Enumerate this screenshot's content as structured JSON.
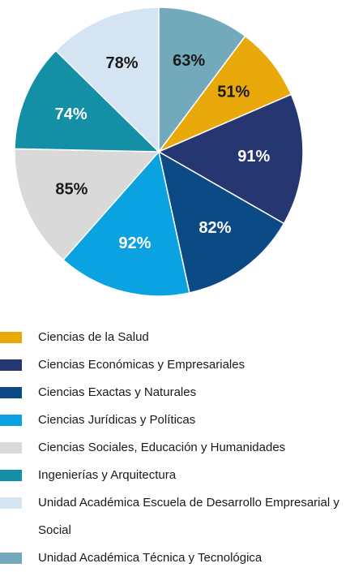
{
  "chart_data": {
    "type": "pie",
    "categories": [
      "Ciencias de la Salud",
      "Ciencias Económicas y Empresariales",
      "Ciencias Exactas y Naturales",
      "Ciencias Jurídicas y Políticas",
      "Ciencias Sociales, Educación y Humanidades",
      "Ingenierías y Arquitectura",
      "Unidad Académica Escuela de Desarrollo Empresarial y Social",
      "Unidad Académica Técnica y Tecnológica"
    ],
    "values": [
      51,
      91,
      82,
      92,
      85,
      74,
      78,
      63
    ],
    "value_labels": [
      "51%",
      "91%",
      "82%",
      "92%",
      "85%",
      "74%",
      "78%",
      "63%"
    ],
    "colors": [
      "#e9a90a",
      "#253670",
      "#0c4a86",
      "#0aa2e0",
      "#d9d9d9",
      "#1490a6",
      "#d4e4f3",
      "#72a9bb"
    ]
  }
}
